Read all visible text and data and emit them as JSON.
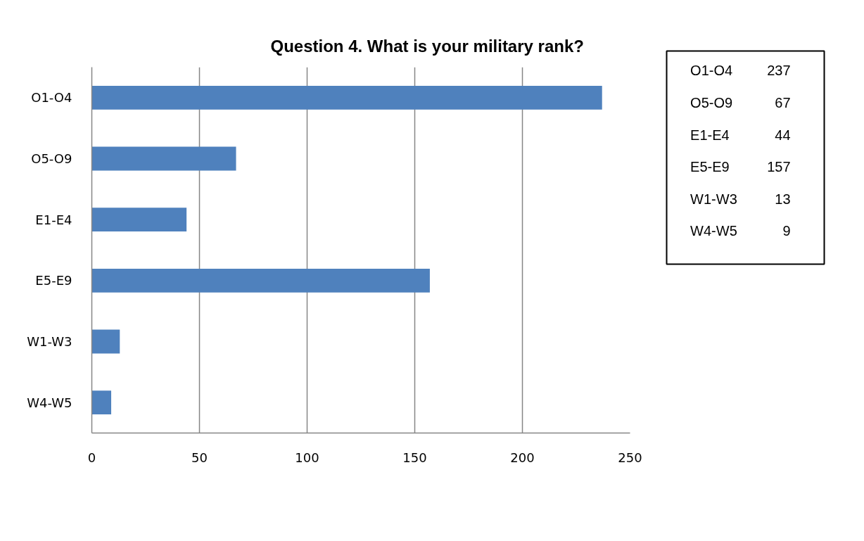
{
  "chart_data": [
    {
      "type": "bar",
      "orientation": "horizontal",
      "title": "Question 4.  What is your military rank?",
      "categories": [
        "O1-O4",
        "O5-O9",
        "E1-E4",
        "E5-E9",
        "W1-W3",
        "W4-W5"
      ],
      "values": [
        237,
        67,
        44,
        157,
        13,
        9
      ],
      "color": "#4f81bd",
      "xlim": [
        0,
        250
      ],
      "xticks": [
        0,
        50,
        100,
        150,
        200,
        250
      ],
      "grid": "x"
    },
    {
      "type": "other",
      "categories": [
        "O1-O4",
        "O5-O9",
        "E1-E4",
        "E5-E9",
        "W1-W3",
        "W4-W5"
      ],
      "values": [
        237,
        67,
        44,
        157,
        13,
        9
      ],
      "data_labels": true
    }
  ]
}
